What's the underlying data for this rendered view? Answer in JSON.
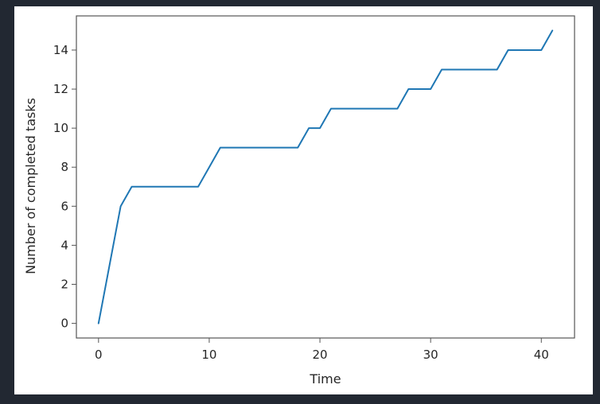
{
  "chart_data": {
    "type": "line",
    "title": "",
    "xlabel": "Time",
    "ylabel": "Number of completed tasks",
    "xlim": [
      -2,
      43
    ],
    "ylim": [
      -0.75,
      15.75
    ],
    "xticks": [
      0,
      10,
      20,
      30,
      40
    ],
    "yticks": [
      0,
      2,
      4,
      6,
      8,
      10,
      12,
      14
    ],
    "grid": false,
    "series": [
      {
        "color": "#1f77b4",
        "x": [
          0,
          1,
          2,
          3,
          4,
          5,
          6,
          7,
          8,
          9,
          10,
          11,
          12,
          13,
          14,
          15,
          16,
          17,
          18,
          19,
          20,
          21,
          22,
          23,
          24,
          25,
          26,
          27,
          28,
          29,
          30,
          31,
          32,
          33,
          34,
          35,
          36,
          37,
          38,
          39,
          40,
          41
        ],
        "y": [
          0,
          3,
          6,
          7,
          7,
          7,
          7,
          7,
          7,
          7,
          8,
          9,
          9,
          9,
          9,
          9,
          9,
          9,
          9,
          10,
          10,
          11,
          11,
          11,
          11,
          11,
          11,
          11,
          12,
          12,
          12,
          13,
          13,
          13,
          13,
          13,
          13,
          14,
          14,
          14,
          14,
          15
        ]
      }
    ]
  }
}
